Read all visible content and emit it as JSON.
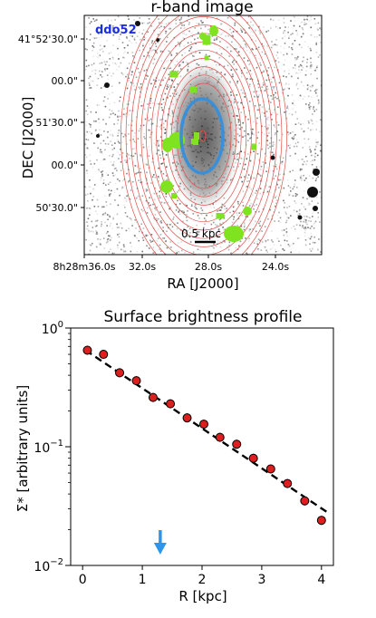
{
  "chart_data": [
    {
      "type": "image",
      "title": "r-band image",
      "xlabel": "RA [J2000]",
      "ylabel": "DEC [J2000]",
      "object_label": "ddo52",
      "object_label_color": "#1a2ee6",
      "x_ticks": [
        "8h28m36.0s",
        "32.0s",
        "28.0s",
        "24.0s"
      ],
      "y_ticks": [
        "41°52'30.0\"",
        "00.0\"",
        "51'30.0\"",
        "00.0\"",
        "50'30.0\""
      ],
      "scale_bar_label": "0.5 kpc",
      "contour_color": "#e0504a",
      "ellipse_color": "#3a8fd8",
      "mask_color": "#7fe31f"
    },
    {
      "type": "scatter",
      "title": "Surface brightness profile",
      "xlabel": "R [kpc]",
      "ylabel": "Σ* [arbitrary units]",
      "x_ticks": [
        "0",
        "1",
        "2",
        "3",
        "4"
      ],
      "y_ticks": [
        "10^0",
        "10^-1",
        "10^-2"
      ],
      "xlim": [
        -0.2,
        4.2
      ],
      "ylim": [
        0.01,
        1
      ],
      "yscale": "log",
      "series": [
        {
          "x": [
            0.08,
            0.35,
            0.62,
            0.9,
            1.18,
            1.47,
            1.75,
            2.03,
            2.3,
            2.58,
            2.86,
            3.15,
            3.43,
            3.72,
            4.0
          ],
          "y": [
            0.65,
            0.6,
            0.42,
            0.36,
            0.26,
            0.23,
            0.175,
            0.155,
            0.12,
            0.105,
            0.08,
            0.065,
            0.049,
            0.035,
            0.024
          ],
          "marker_color": "#dd1f1f"
        }
      ],
      "fit": {
        "x": [
          0.05,
          4.1
        ],
        "y": [
          0.65,
          0.028
        ]
      },
      "arrow_x": 1.3,
      "arrow_color": "#2e96ea"
    }
  ]
}
